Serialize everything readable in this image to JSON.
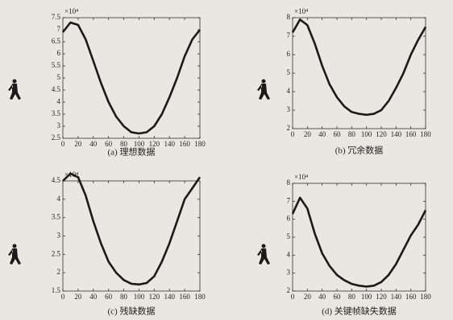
{
  "chart_data": [
    {
      "type": "line",
      "multiplier": "×10⁴",
      "caption": "(a) 理想数据",
      "color": "#1a1a1a",
      "x": [
        0,
        10,
        20,
        30,
        40,
        50,
        60,
        70,
        80,
        90,
        100,
        110,
        120,
        130,
        140,
        150,
        160,
        170,
        180
      ],
      "values": [
        6.9,
        7.3,
        7.2,
        6.6,
        5.7,
        4.8,
        4.0,
        3.4,
        3.0,
        2.75,
        2.7,
        2.75,
        3.0,
        3.5,
        4.2,
        5.0,
        5.9,
        6.6,
        7.0
      ],
      "xlim": [
        0,
        180
      ],
      "xticks": [
        0,
        20,
        40,
        60,
        80,
        100,
        120,
        140,
        160,
        180
      ],
      "ylim": [
        2.5,
        7.5
      ],
      "yticks": [
        2.5,
        3,
        3.5,
        4,
        4.5,
        5,
        5.5,
        6,
        6.5,
        7,
        7.5
      ]
    },
    {
      "type": "line",
      "multiplier": "×10⁴",
      "caption": "(b) 冗余数据",
      "color": "#1a1a1a",
      "x": [
        0,
        10,
        20,
        30,
        40,
        50,
        60,
        70,
        80,
        90,
        100,
        110,
        120,
        130,
        140,
        150,
        160,
        170,
        180
      ],
      "values": [
        7.2,
        7.9,
        7.6,
        6.6,
        5.4,
        4.4,
        3.7,
        3.2,
        2.9,
        2.8,
        2.75,
        2.8,
        3.0,
        3.5,
        4.2,
        5.0,
        6.0,
        6.8,
        7.5
      ],
      "xlim": [
        0,
        180
      ],
      "xticks": [
        0,
        20,
        40,
        60,
        80,
        100,
        120,
        140,
        160,
        180
      ],
      "ylim": [
        2,
        8
      ],
      "yticks": [
        2,
        3,
        4,
        5,
        6,
        7,
        8
      ]
    },
    {
      "type": "line",
      "multiplier": "×10⁴",
      "caption": "(c) 残缺数据",
      "color": "#1a1a1a",
      "x": [
        0,
        10,
        20,
        30,
        40,
        50,
        60,
        70,
        80,
        90,
        100,
        110,
        120,
        130,
        140,
        150,
        160,
        170,
        180
      ],
      "values": [
        4.5,
        4.7,
        4.6,
        4.1,
        3.4,
        2.8,
        2.3,
        2.0,
        1.8,
        1.7,
        1.68,
        1.72,
        1.9,
        2.3,
        2.8,
        3.4,
        4.0,
        4.3,
        4.6
      ],
      "xlim": [
        0,
        180
      ],
      "xticks": [
        0,
        20,
        40,
        60,
        80,
        100,
        120,
        140,
        160,
        180
      ],
      "ylim": [
        1.5,
        4.5
      ],
      "yticks": [
        1.5,
        2,
        2.5,
        3,
        3.5,
        4,
        4.5
      ]
    },
    {
      "type": "line",
      "multiplier": "×10⁴",
      "caption": "(d) 关键帧缺失数据",
      "color": "#1a1a1a",
      "x": [
        0,
        10,
        20,
        30,
        40,
        50,
        60,
        70,
        80,
        90,
        100,
        110,
        120,
        130,
        140,
        150,
        160,
        170,
        180
      ],
      "values": [
        6.3,
        7.2,
        6.6,
        5.2,
        4.1,
        3.4,
        2.9,
        2.6,
        2.4,
        2.3,
        2.25,
        2.3,
        2.5,
        2.9,
        3.5,
        4.3,
        5.1,
        5.7,
        6.5
      ],
      "xlim": [
        0,
        180
      ],
      "xticks": [
        0,
        20,
        40,
        60,
        80,
        100,
        120,
        140,
        160,
        180
      ],
      "ylim": [
        2,
        8
      ],
      "yticks": [
        2,
        3,
        4,
        5,
        6,
        7,
        8
      ]
    }
  ]
}
